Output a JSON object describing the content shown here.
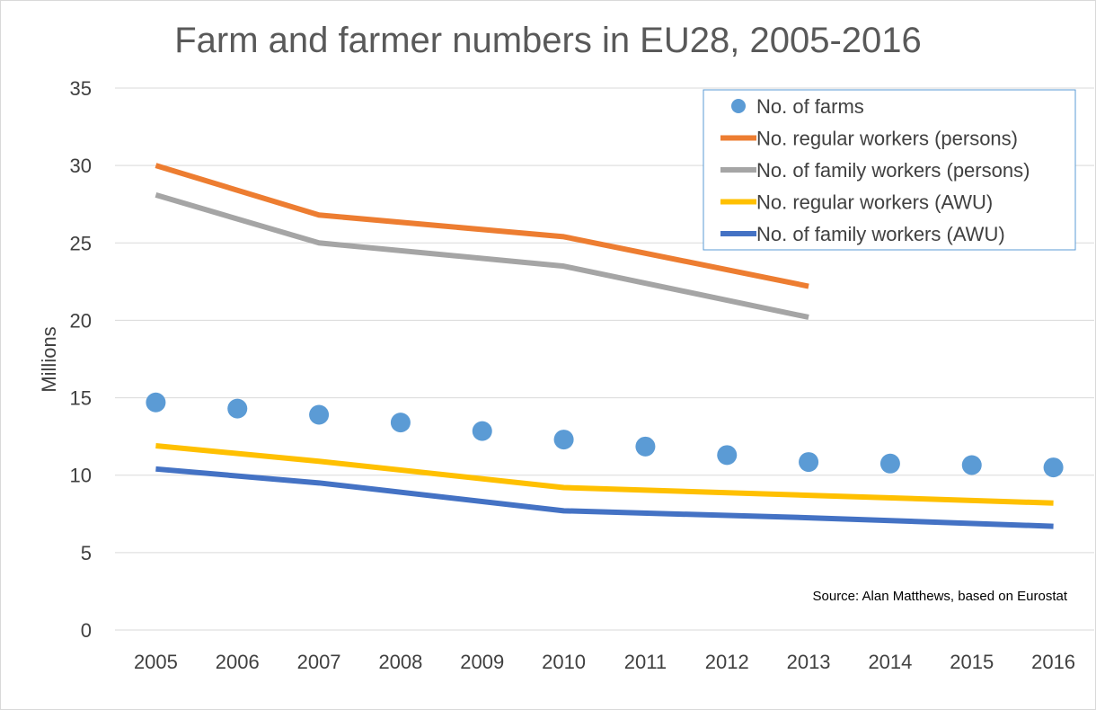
{
  "chart_data": {
    "type": "line",
    "title": "Farm and farmer numbers in EU28, 2005-2016",
    "ylabel": "Millions",
    "xlabel": "",
    "ylim": [
      0,
      35
    ],
    "yticks": [
      0,
      5,
      10,
      15,
      20,
      25,
      30,
      35
    ],
    "grid": true,
    "legend_position": "top-right",
    "categories": [
      "2005",
      "2006",
      "2007",
      "2008",
      "2009",
      "2010",
      "2011",
      "2012",
      "2013",
      "2014",
      "2015",
      "2016"
    ],
    "series": [
      {
        "name": "No. of farms",
        "style": "markers",
        "color": "#5B9BD5",
        "values": [
          14.7,
          14.3,
          13.9,
          13.4,
          12.85,
          12.3,
          11.85,
          11.3,
          10.85,
          10.75,
          10.65,
          10.5
        ]
      },
      {
        "name": "No. regular workers (persons)",
        "style": "line",
        "color": "#ED7D31",
        "values": [
          30.0,
          null,
          26.8,
          null,
          null,
          25.4,
          null,
          null,
          22.2,
          null,
          null,
          null
        ]
      },
      {
        "name": "No. of family workers (persons)",
        "style": "line",
        "color": "#A5A5A5",
        "values": [
          28.1,
          null,
          25.0,
          null,
          null,
          23.5,
          null,
          null,
          20.2,
          null,
          null,
          null
        ]
      },
      {
        "name": "No. regular workers (AWU)",
        "style": "line",
        "color": "#FFC000",
        "values": [
          11.9,
          null,
          10.9,
          null,
          null,
          9.2,
          null,
          null,
          8.7,
          null,
          null,
          8.2
        ]
      },
      {
        "name": "No. of family workers (AWU)",
        "style": "line",
        "color": "#4472C4",
        "values": [
          10.4,
          null,
          9.5,
          null,
          null,
          7.7,
          null,
          null,
          7.25,
          null,
          null,
          6.7
        ]
      }
    ],
    "annotations": [
      "Source:  Alan Matthews, based on Eurostat"
    ]
  }
}
